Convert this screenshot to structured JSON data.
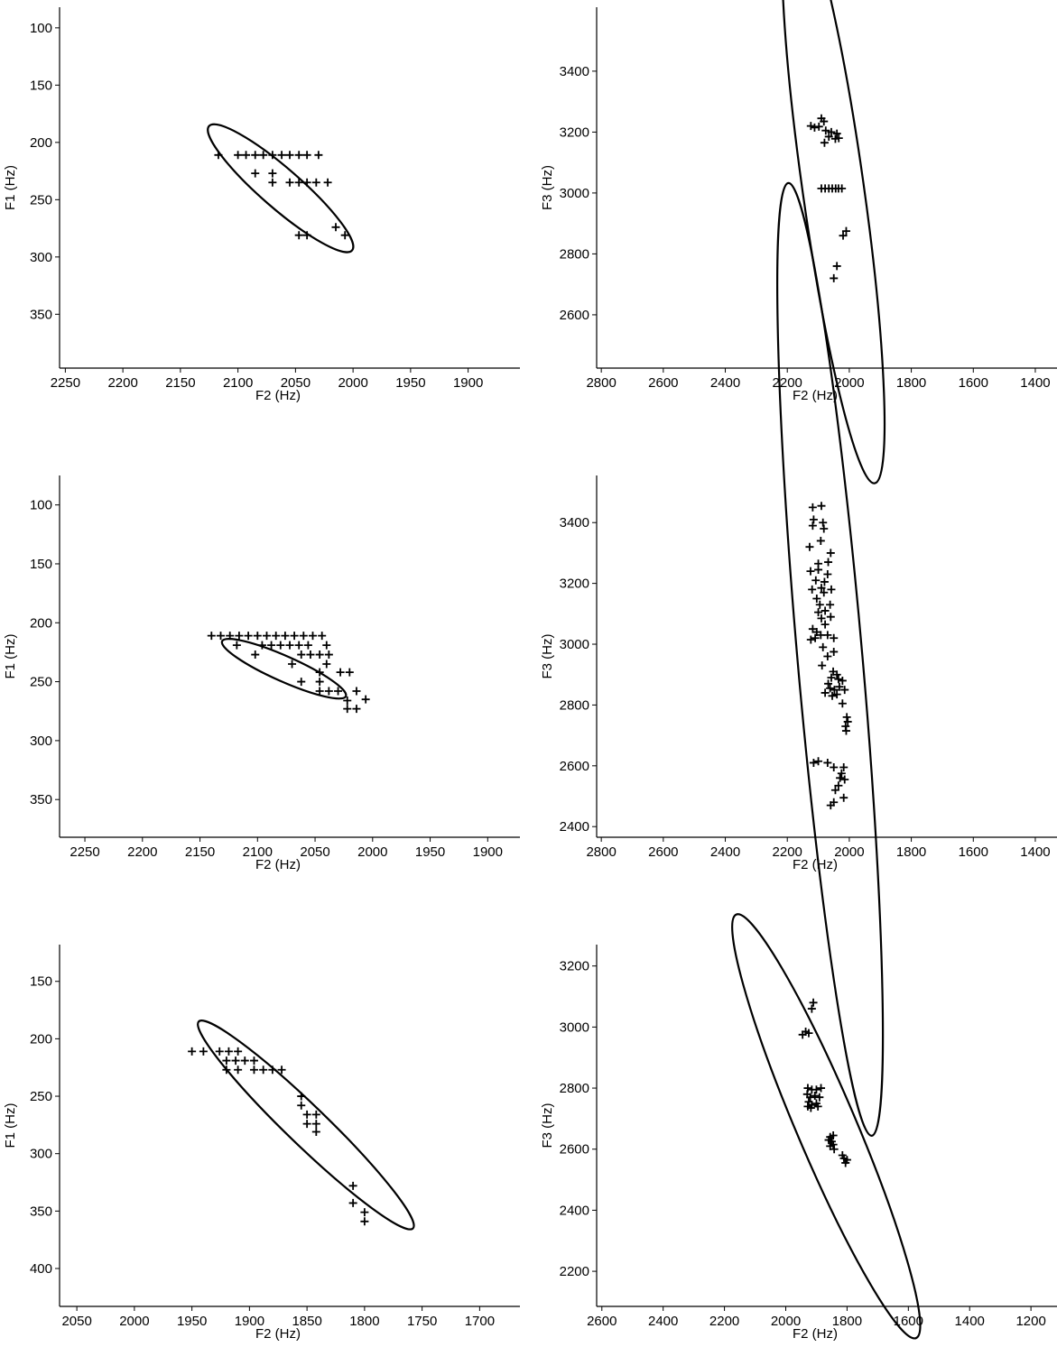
{
  "chart_data": [
    {
      "type": "scatter",
      "xlabel": "F2 (Hz)",
      "ylabel": "F1 (Hz)",
      "xlim": [
        2255,
        1855
      ],
      "ylim": [
        397,
        82
      ],
      "xticks": [
        2250,
        2200,
        2150,
        2100,
        2050,
        2000,
        1950,
        1900
      ],
      "yticks": [
        100,
        150,
        200,
        250,
        300,
        350
      ],
      "grid": false,
      "points": [
        [
          2117,
          211
        ],
        [
          2100,
          211
        ],
        [
          2093,
          211
        ],
        [
          2085,
          211
        ],
        [
          2078,
          211
        ],
        [
          2070,
          211
        ],
        [
          2062,
          211
        ],
        [
          2055,
          211
        ],
        [
          2047,
          211
        ],
        [
          2040,
          211
        ],
        [
          2030,
          211
        ],
        [
          2085,
          227
        ],
        [
          2070,
          227
        ],
        [
          2070,
          235
        ],
        [
          2055,
          235
        ],
        [
          2047,
          235
        ],
        [
          2040,
          235
        ],
        [
          2032,
          235
        ],
        [
          2022,
          235
        ],
        [
          2047,
          281
        ],
        [
          2040,
          281
        ],
        [
          2015,
          274
        ],
        [
          2007,
          281
        ]
      ],
      "ellipse": {
        "cx": 2063,
        "cy": 240,
        "rx": 105,
        "ry": 22,
        "angle_deg": 41
      }
    },
    {
      "type": "scatter",
      "xlabel": "F2 (Hz)",
      "ylabel": "F3 (Hz)",
      "xlim": [
        2815,
        1330
      ],
      "ylim": [
        2425,
        3610
      ],
      "xticks": [
        2800,
        2600,
        2400,
        2200,
        2000,
        1800,
        1600,
        1400
      ],
      "yticks": [
        2600,
        2800,
        3000,
        3200,
        3400
      ],
      "grid": false,
      "points": [
        [
          2124,
          3220
        ],
        [
          2112,
          3215
        ],
        [
          2098,
          3218
        ],
        [
          2082,
          3235
        ],
        [
          2090,
          3245
        ],
        [
          2076,
          3205
        ],
        [
          2058,
          3200
        ],
        [
          2040,
          3195
        ],
        [
          2066,
          3185
        ],
        [
          2045,
          3178
        ],
        [
          2080,
          3165
        ],
        [
          2034,
          3180
        ],
        [
          2090,
          3015
        ],
        [
          2078,
          3015
        ],
        [
          2066,
          3015
        ],
        [
          2055,
          3015
        ],
        [
          2044,
          3015
        ],
        [
          2035,
          3015
        ],
        [
          2024,
          3015
        ],
        [
          2020,
          2860
        ],
        [
          2010,
          2875
        ],
        [
          2040,
          2760
        ],
        [
          2050,
          2720
        ]
      ],
      "ellipse": {
        "cx": 2052,
        "cy": 3015,
        "rx": 330,
        "ry": 34,
        "angle_deg": 82
      }
    },
    {
      "type": "scatter",
      "xlabel": "F2 (Hz)",
      "ylabel": "F1 (Hz)",
      "xlim": [
        2272,
        1872
      ],
      "ylim": [
        382,
        75
      ],
      "xticks": [
        2250,
        2200,
        2150,
        2100,
        2050,
        2000,
        1950,
        1900
      ],
      "yticks": [
        100,
        150,
        200,
        250,
        300,
        350
      ],
      "grid": false,
      "points": [
        [
          2140,
          211
        ],
        [
          2132,
          211
        ],
        [
          2124,
          211
        ],
        [
          2116,
          211
        ],
        [
          2108,
          211
        ],
        [
          2100,
          211
        ],
        [
          2092,
          211
        ],
        [
          2084,
          211
        ],
        [
          2076,
          211
        ],
        [
          2068,
          211
        ],
        [
          2060,
          211
        ],
        [
          2052,
          211
        ],
        [
          2044,
          211
        ],
        [
          2118,
          219
        ],
        [
          2096,
          219
        ],
        [
          2088,
          219
        ],
        [
          2080,
          219
        ],
        [
          2072,
          219
        ],
        [
          2064,
          219
        ],
        [
          2056,
          219
        ],
        [
          2040,
          219
        ],
        [
          2102,
          227
        ],
        [
          2062,
          227
        ],
        [
          2054,
          227
        ],
        [
          2046,
          227
        ],
        [
          2038,
          227
        ],
        [
          2070,
          235
        ],
        [
          2040,
          235
        ],
        [
          2028,
          242
        ],
        [
          2020,
          242
        ],
        [
          2046,
          242
        ],
        [
          2046,
          250
        ],
        [
          2062,
          250
        ],
        [
          2046,
          258
        ],
        [
          2038,
          258
        ],
        [
          2030,
          258
        ],
        [
          2014,
          258
        ],
        [
          2006,
          265
        ],
        [
          2022,
          266
        ],
        [
          2022,
          273
        ],
        [
          2014,
          273
        ]
      ],
      "ellipse": {
        "cx": 2077,
        "cy": 239,
        "rx": 75,
        "ry": 14,
        "angle_deg": 24
      }
    },
    {
      "type": "scatter",
      "xlabel": "F2 (Hz)",
      "ylabel": "F3 (Hz)",
      "xlim": [
        2815,
        1330
      ],
      "ylim": [
        2365,
        3555
      ],
      "xticks": [
        2800,
        2600,
        2400,
        2200,
        2000,
        1800,
        1600,
        1400
      ],
      "yticks": [
        2400,
        2600,
        2800,
        3000,
        3200,
        3400
      ],
      "grid": false,
      "points": [
        [
          2118,
          3450
        ],
        [
          2090,
          3455
        ],
        [
          2085,
          3400
        ],
        [
          2115,
          3410
        ],
        [
          2118,
          3390
        ],
        [
          2082,
          3380
        ],
        [
          2092,
          3340
        ],
        [
          2128,
          3320
        ],
        [
          2060,
          3300
        ],
        [
          2100,
          3265
        ],
        [
          2068,
          3270
        ],
        [
          2125,
          3240
        ],
        [
          2100,
          3245
        ],
        [
          2070,
          3230
        ],
        [
          2080,
          3205
        ],
        [
          2108,
          3210
        ],
        [
          2120,
          3180
        ],
        [
          2090,
          3185
        ],
        [
          2082,
          3170
        ],
        [
          2058,
          3180
        ],
        [
          2105,
          3150
        ],
        [
          2095,
          3130
        ],
        [
          2062,
          3130
        ],
        [
          2078,
          3110
        ],
        [
          2100,
          3105
        ],
        [
          2060,
          3090
        ],
        [
          2090,
          3085
        ],
        [
          2078,
          3065
        ],
        [
          2118,
          3050
        ],
        [
          2105,
          3040
        ],
        [
          2092,
          3030
        ],
        [
          2070,
          3030
        ],
        [
          2050,
          3020
        ],
        [
          2110,
          3020
        ],
        [
          2124,
          3015
        ],
        [
          2085,
          2990
        ],
        [
          2050,
          2975
        ],
        [
          2070,
          2960
        ],
        [
          2088,
          2930
        ],
        [
          2052,
          2910
        ],
        [
          2040,
          2900
        ],
        [
          2058,
          2890
        ],
        [
          2035,
          2885
        ],
        [
          2022,
          2880
        ],
        [
          2068,
          2870
        ],
        [
          2032,
          2860
        ],
        [
          2062,
          2855
        ],
        [
          2048,
          2850
        ],
        [
          2015,
          2850
        ],
        [
          2078,
          2840
        ],
        [
          2040,
          2835
        ],
        [
          2055,
          2830
        ],
        [
          2022,
          2805
        ],
        [
          2008,
          2760
        ],
        [
          2005,
          2745
        ],
        [
          2012,
          2730
        ],
        [
          2010,
          2715
        ],
        [
          2115,
          2610
        ],
        [
          2100,
          2615
        ],
        [
          2070,
          2610
        ],
        [
          2050,
          2595
        ],
        [
          2018,
          2595
        ],
        [
          2025,
          2575
        ],
        [
          2030,
          2560
        ],
        [
          2015,
          2555
        ],
        [
          2035,
          2535
        ],
        [
          2045,
          2520
        ],
        [
          2050,
          2480
        ],
        [
          2060,
          2470
        ],
        [
          2018,
          2495
        ]
      ],
      "ellipse": {
        "cx": 2062,
        "cy": 2950,
        "rx": 530,
        "ry": 36,
        "angle_deg": 85
      }
    },
    {
      "type": "scatter",
      "xlabel": "F2 (Hz)",
      "ylabel": "F3 (Hz)",
      "xlim": [
        2617,
        1115
      ],
      "ylim": [
        2085,
        3270
      ],
      "xticks": [
        2600,
        2400,
        2200,
        2000,
        1800,
        1600,
        1400,
        1200
      ],
      "yticks": [
        2200,
        2400,
        2600,
        2800,
        3000,
        3200
      ],
      "grid": false,
      "points": [
        [
          1945,
          2975
        ],
        [
          1935,
          2985
        ],
        [
          1925,
          2980
        ],
        [
          1915,
          3060
        ],
        [
          1910,
          3080
        ],
        [
          1928,
          2800
        ],
        [
          1915,
          2795
        ],
        [
          1900,
          2795
        ],
        [
          1885,
          2800
        ],
        [
          1930,
          2780
        ],
        [
          1920,
          2770
        ],
        [
          1905,
          2775
        ],
        [
          1890,
          2770
        ],
        [
          1925,
          2755
        ],
        [
          1915,
          2745
        ],
        [
          1900,
          2750
        ],
        [
          1928,
          2740
        ],
        [
          1918,
          2735
        ],
        [
          1895,
          2740
        ],
        [
          1855,
          2640
        ],
        [
          1845,
          2645
        ],
        [
          1860,
          2630
        ],
        [
          1850,
          2625
        ],
        [
          1845,
          2615
        ],
        [
          1855,
          2610
        ],
        [
          1842,
          2600
        ],
        [
          1815,
          2580
        ],
        [
          1810,
          2570
        ],
        [
          1800,
          2565
        ],
        [
          1805,
          2555
        ]
      ],
      "ellipse": {
        "cx": 1868,
        "cy": 2675,
        "rx": 255,
        "ry": 33,
        "angle_deg": 67
      }
    },
    {
      "type": "scatter",
      "xlabel": "F2 (Hz)",
      "ylabel": "F1 (Hz)",
      "xlim": [
        2065,
        1665
      ],
      "ylim": [
        433,
        118
      ],
      "xticks": [
        2050,
        2000,
        1950,
        1900,
        1850,
        1800,
        1750,
        1700
      ],
      "yticks": [
        150,
        200,
        250,
        300,
        350,
        400
      ],
      "grid": false,
      "points": [
        [
          1950,
          211
        ],
        [
          1940,
          211
        ],
        [
          1926,
          211
        ],
        [
          1918,
          211
        ],
        [
          1910,
          211
        ],
        [
          1920,
          219
        ],
        [
          1912,
          219
        ],
        [
          1904,
          219
        ],
        [
          1896,
          219
        ],
        [
          1920,
          227
        ],
        [
          1910,
          227
        ],
        [
          1896,
          227
        ],
        [
          1888,
          227
        ],
        [
          1880,
          227
        ],
        [
          1872,
          227
        ],
        [
          1855,
          250
        ],
        [
          1855,
          258
        ],
        [
          1850,
          266
        ],
        [
          1842,
          266
        ],
        [
          1850,
          274
        ],
        [
          1842,
          274
        ],
        [
          1842,
          281
        ],
        [
          1810,
          328
        ],
        [
          1810,
          343
        ],
        [
          1800,
          351
        ],
        [
          1800,
          359
        ]
      ],
      "ellipse": {
        "cx": 1851,
        "cy": 275,
        "rx": 165,
        "ry": 22,
        "angle_deg": 44
      }
    }
  ]
}
